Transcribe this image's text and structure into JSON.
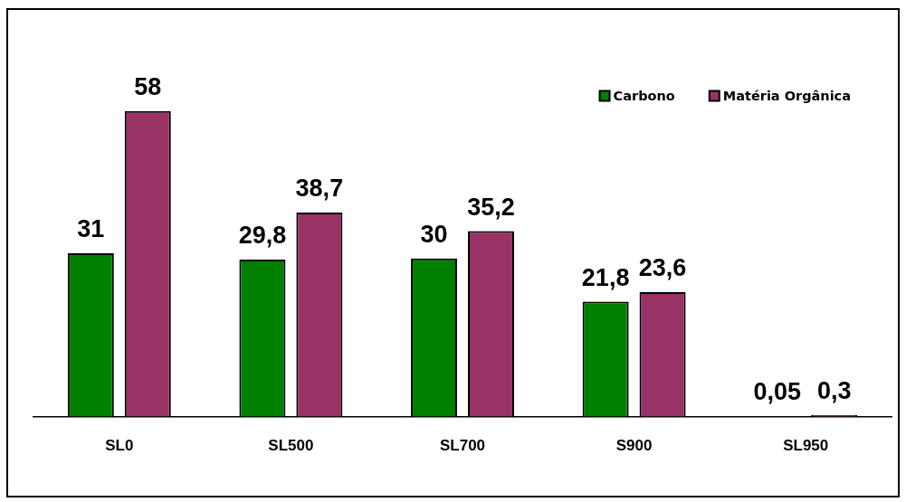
{
  "chart_data": {
    "type": "bar",
    "categories": [
      "SL0",
      "SL500",
      "SL700",
      "S900",
      "SL950"
    ],
    "series": [
      {
        "name": "Carbono",
        "color": "#008000",
        "values": [
          31,
          29.8,
          30,
          21.8,
          0.05
        ],
        "value_labels": [
          "31",
          "29,8",
          "30",
          "21,8",
          "0,05"
        ]
      },
      {
        "name": "Matéria Orgânica",
        "color": "#993366",
        "values": [
          58,
          38.7,
          35.2,
          23.6,
          0.3
        ],
        "value_labels": [
          "58",
          "38,7",
          "35,2",
          "23,6",
          "0,3"
        ]
      }
    ],
    "legend": "top right"
  }
}
